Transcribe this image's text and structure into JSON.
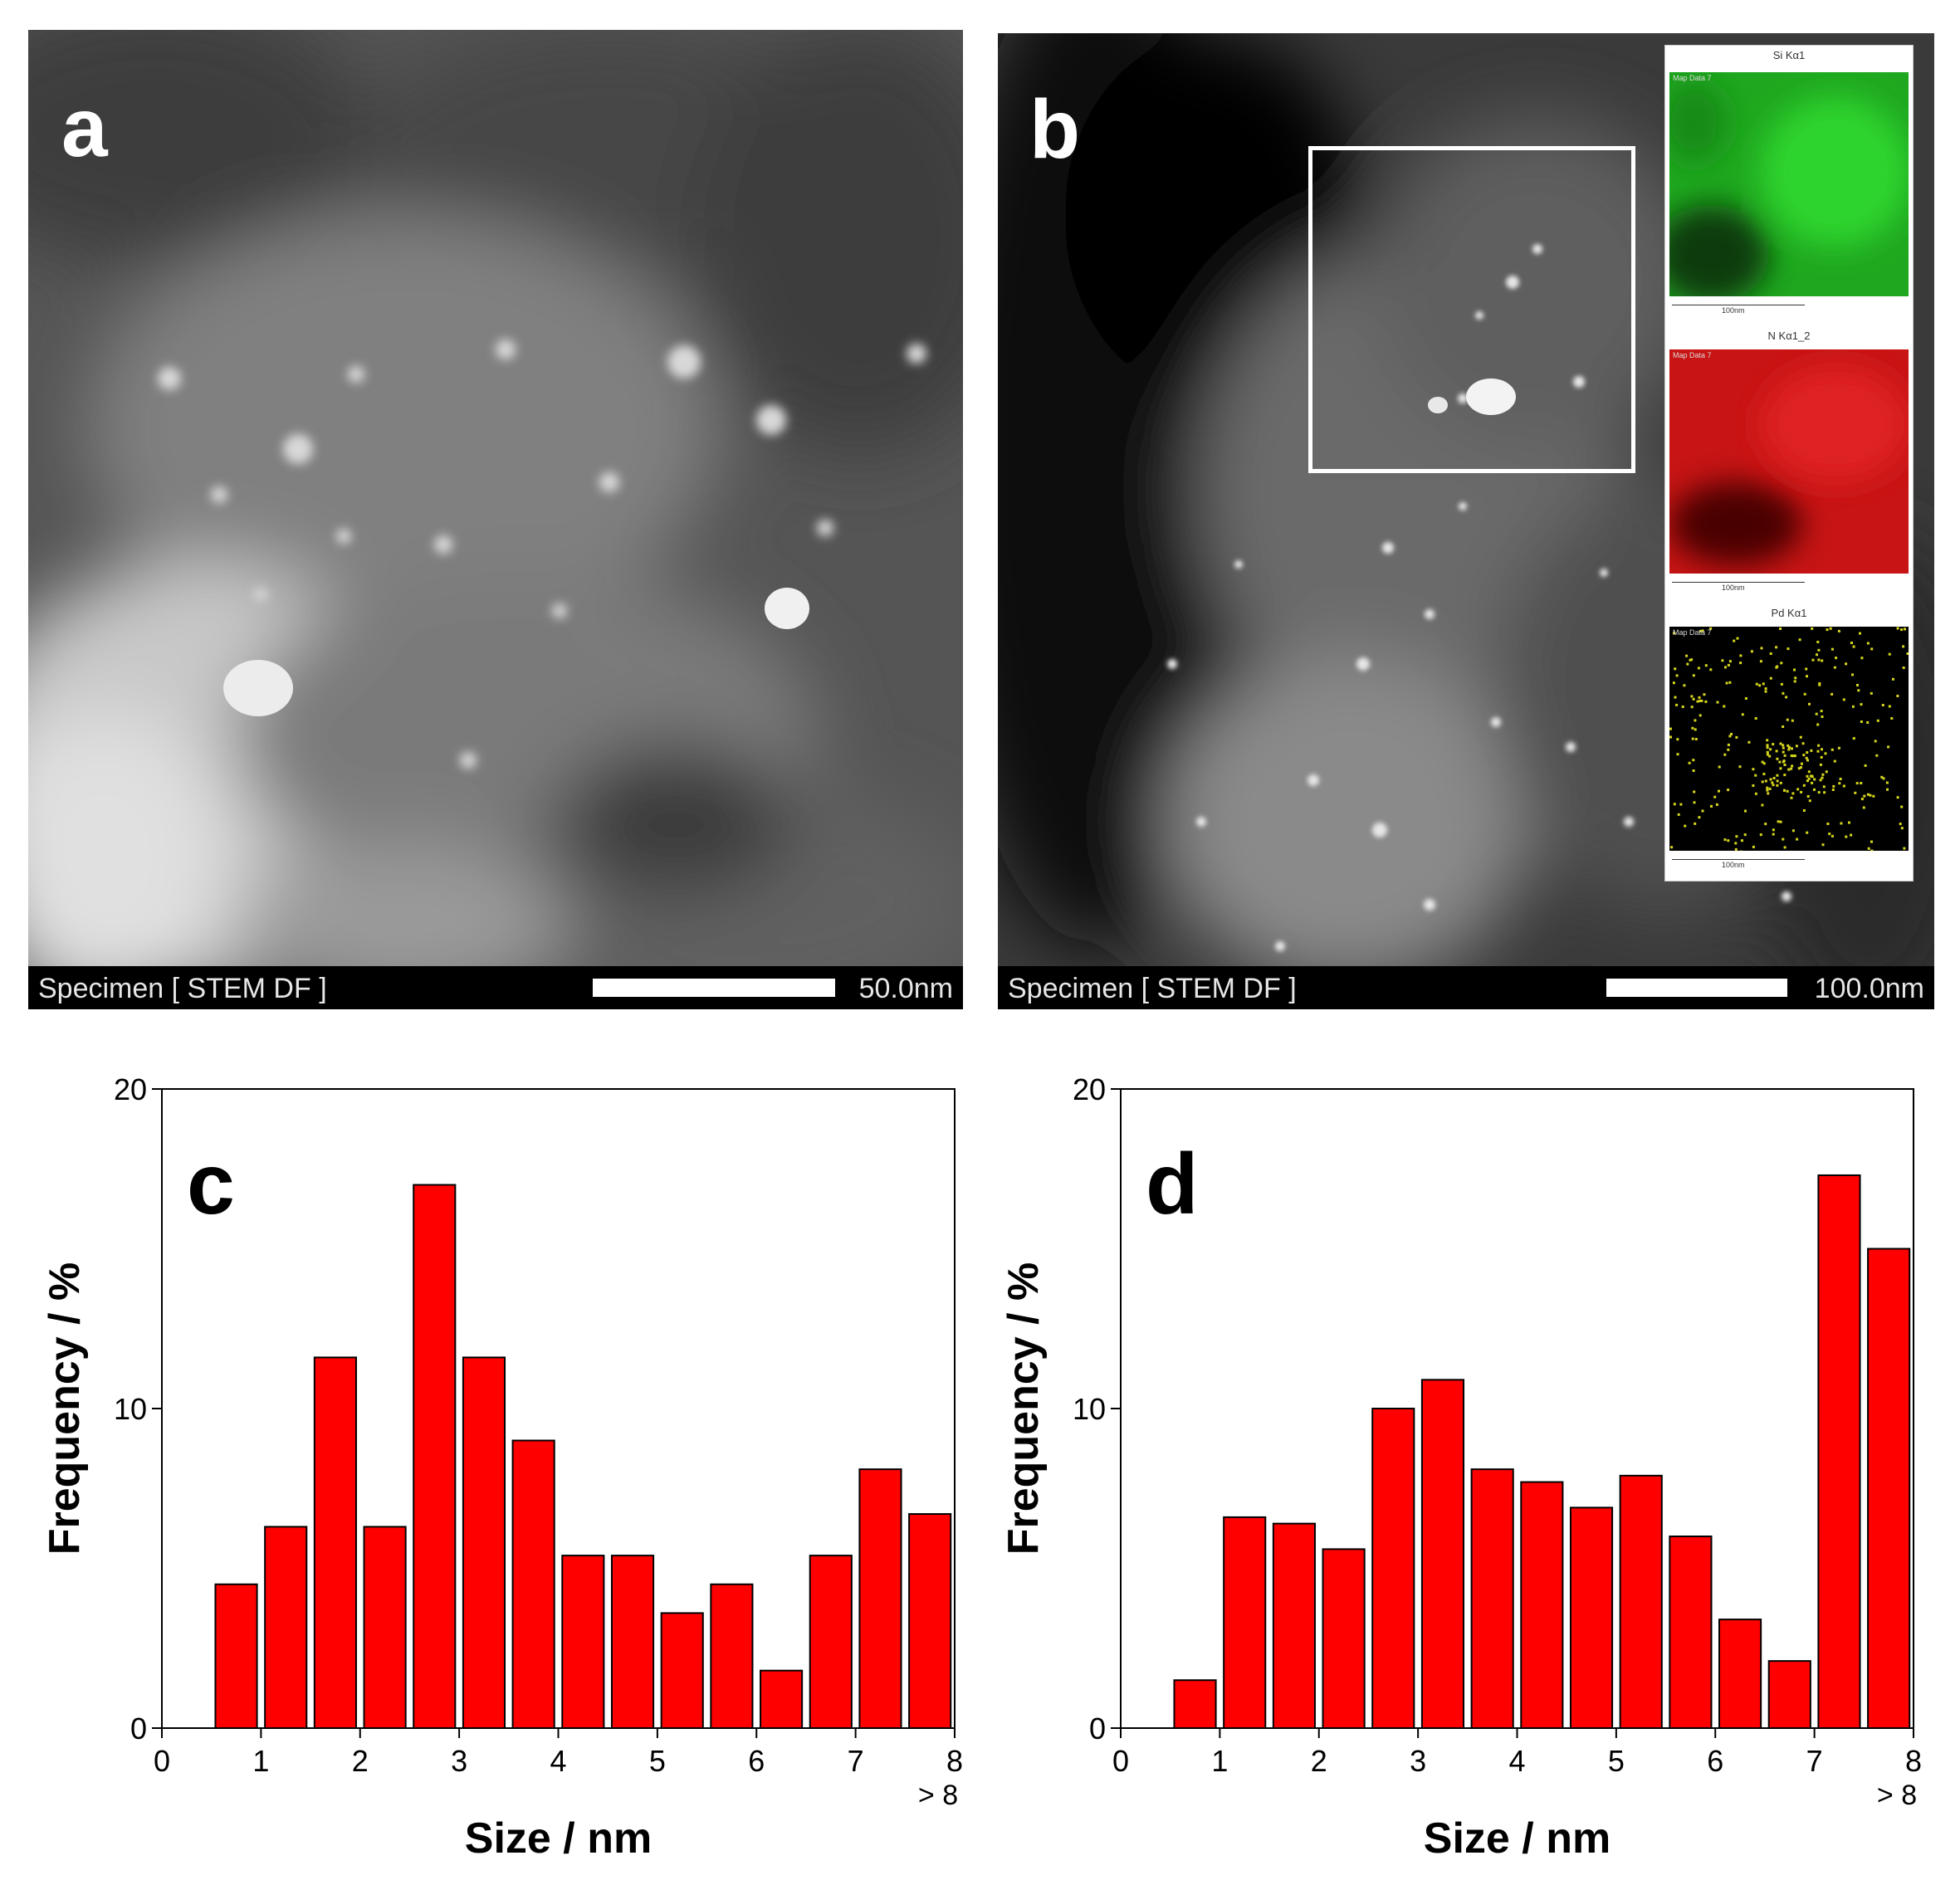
{
  "panels": {
    "a": {
      "letter": "a",
      "info_label": "Specimen [ STEM DF ]",
      "scale_label": "50.0nm"
    },
    "b": {
      "letter": "b",
      "info_label": "Specimen [ STEM DF ]",
      "scale_label": "100.0nm",
      "maps": [
        {
          "title": "Si Kα1",
          "label": "Map Data 7",
          "scale": "100nm",
          "color": "#1fc41f"
        },
        {
          "title": "N Kα1_2",
          "label": "Map Data 7",
          "scale": "100nm",
          "color": "#d11a1a"
        },
        {
          "title": "Pd Kα1",
          "label": "Map Data 7",
          "scale": "100nm",
          "color": "#d6d61c"
        }
      ]
    }
  },
  "chart_data": [
    {
      "panel_letter": "c",
      "type": "bar",
      "xlabel": "Size / nm",
      "ylabel": "Frequency / %",
      "xlim": [
        0,
        8
      ],
      "ylim": [
        0,
        20
      ],
      "xticks": [
        "0",
        "1",
        "2",
        "3",
        "4",
        "5",
        "6",
        "7",
        "8"
      ],
      "yticks": [
        "0",
        "10",
        "20"
      ],
      "extra_tick": "> 8",
      "bar_width": 0.42,
      "bar_color": "#ff0000",
      "x": [
        0.75,
        1.25,
        1.75,
        2.25,
        2.75,
        3.25,
        3.75,
        4.25,
        4.75,
        5.25,
        5.75,
        6.25,
        6.75,
        7.25,
        7.75
      ],
      "values": [
        4.5,
        6.3,
        11.6,
        6.3,
        17.0,
        11.6,
        9.0,
        5.4,
        5.4,
        3.6,
        4.5,
        1.8,
        5.4,
        8.1,
        6.7
      ]
    },
    {
      "panel_letter": "d",
      "type": "bar",
      "xlabel": "Size / nm",
      "ylabel": "Frequency / %",
      "xlim": [
        0,
        8
      ],
      "ylim": [
        0,
        20
      ],
      "xticks": [
        "0",
        "1",
        "2",
        "3",
        "4",
        "5",
        "6",
        "7",
        "8"
      ],
      "yticks": [
        "0",
        "10",
        "20"
      ],
      "extra_tick": "> 8",
      "bar_width": 0.42,
      "bar_color": "#ff0000",
      "x": [
        0.75,
        1.25,
        1.75,
        2.25,
        2.75,
        3.25,
        3.75,
        4.25,
        4.75,
        5.25,
        5.75,
        6.25,
        6.75,
        7.25,
        7.75
      ],
      "values": [
        1.5,
        6.6,
        6.4,
        5.6,
        10.0,
        10.9,
        8.1,
        7.7,
        6.9,
        7.9,
        6.0,
        3.4,
        2.1,
        17.3,
        15.0
      ]
    }
  ]
}
